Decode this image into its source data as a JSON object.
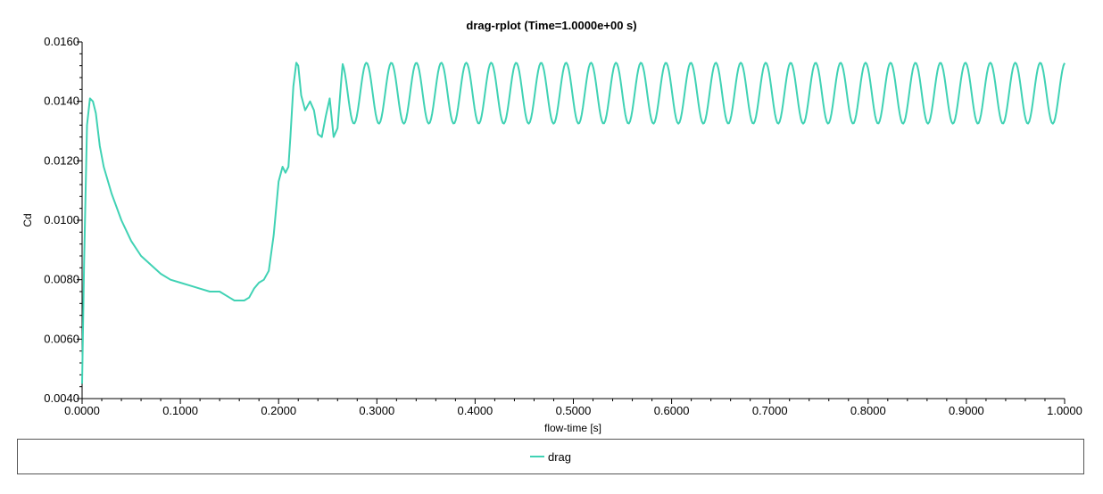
{
  "chart_data": {
    "type": "line",
    "title": "drag-rplot (Time=1.0000e+00 s)",
    "xlabel": "flow-time [s]",
    "ylabel": "Cd",
    "xlim": [
      0.0,
      1.0
    ],
    "ylim": [
      0.004,
      0.016
    ],
    "x_ticks": [
      "0.0000",
      "0.1000",
      "0.2000",
      "0.3000",
      "0.4000",
      "0.5000",
      "0.6000",
      "0.7000",
      "0.8000",
      "0.9000",
      "1.0000"
    ],
    "y_ticks": [
      "0.0040",
      "0.0060",
      "0.0080",
      "0.0100",
      "0.0120",
      "0.0140",
      "0.0160"
    ],
    "legend": {
      "position": "bottom",
      "entries": [
        "drag"
      ]
    },
    "series": [
      {
        "name": "drag",
        "color": "#40d2b4",
        "x": [
          0.0,
          0.002,
          0.005,
          0.008,
          0.011,
          0.014,
          0.018,
          0.022,
          0.03,
          0.04,
          0.05,
          0.06,
          0.07,
          0.08,
          0.09,
          0.1,
          0.11,
          0.12,
          0.13,
          0.14,
          0.15,
          0.155,
          0.16,
          0.165,
          0.17,
          0.175,
          0.18,
          0.185,
          0.19,
          0.195,
          0.2,
          0.204,
          0.207,
          0.21,
          0.212,
          0.215,
          0.218,
          0.22,
          0.223,
          0.227,
          0.232,
          0.236,
          0.24,
          0.244,
          0.248,
          0.252,
          0.256,
          0.26,
          0.264
        ],
        "y": [
          0.0045,
          0.0085,
          0.0132,
          0.0141,
          0.014,
          0.0136,
          0.0125,
          0.0118,
          0.0109,
          0.01,
          0.0093,
          0.0088,
          0.0085,
          0.0082,
          0.008,
          0.0079,
          0.0078,
          0.0077,
          0.0076,
          0.0076,
          0.0074,
          0.0073,
          0.0073,
          0.0073,
          0.0074,
          0.0077,
          0.0079,
          0.008,
          0.0083,
          0.0095,
          0.0113,
          0.0118,
          0.0116,
          0.0118,
          0.0128,
          0.0145,
          0.0153,
          0.0152,
          0.0142,
          0.0137,
          0.014,
          0.0137,
          0.0129,
          0.0128,
          0.0135,
          0.0141,
          0.0128,
          0.0131,
          0.0148
        ],
        "periodic_tail": {
          "x_start": 0.264,
          "x_end": 1.0,
          "period": 0.0254,
          "ymin": 0.01325,
          "ymax": 0.0153
        }
      }
    ]
  }
}
